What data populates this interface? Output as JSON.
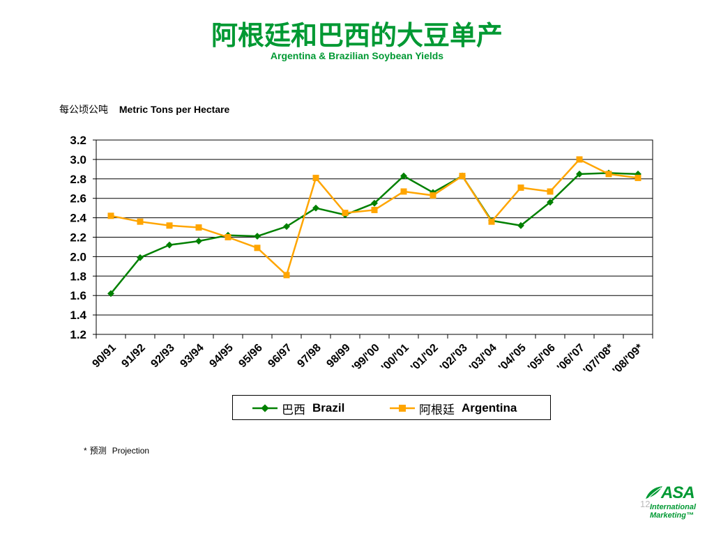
{
  "header": {
    "title_cn": "阿根廷和巴西的大豆单产",
    "title_en": "Argentina & Brazilian Soybean Yields"
  },
  "unit_label": {
    "cn": "每公顷公吨",
    "en": "Metric Tons per Hectare"
  },
  "chart_data": {
    "type": "line",
    "categories": [
      "90/91",
      "91/92",
      "92/93",
      "93/94",
      "94/95",
      "95/96",
      "96/97",
      "97/98",
      "98/99",
      "'99/'00",
      "'00/'01",
      "'01/'02",
      "'02/'03",
      "'03/'04",
      "'04/'05",
      "'05/'06",
      "'06/'07",
      "'07/'08*",
      "'08/'09*"
    ],
    "series": [
      {
        "name": "巴西 Brazil",
        "name_cn": "巴西",
        "name_en": "Brazil",
        "color": "#008000",
        "marker": "diamond",
        "values": [
          1.62,
          1.99,
          2.12,
          2.16,
          2.22,
          2.21,
          2.31,
          2.5,
          2.43,
          2.55,
          2.83,
          2.66,
          2.83,
          2.37,
          2.32,
          2.56,
          2.85,
          2.86,
          2.85
        ]
      },
      {
        "name": "阿根廷 Argentina",
        "name_cn": "阿根廷",
        "name_en": "Argentina",
        "color": "#ffa500",
        "marker": "square",
        "values": [
          2.42,
          2.36,
          2.32,
          2.3,
          2.2,
          2.09,
          1.81,
          2.81,
          2.45,
          2.48,
          2.67,
          2.63,
          2.83,
          2.36,
          2.71,
          2.67,
          3.0,
          2.85,
          2.81
        ]
      }
    ],
    "ylim": [
      1.2,
      3.2
    ],
    "yticks": [
      "1.2",
      "1.4",
      "1.6",
      "1.8",
      "2.0",
      "2.2",
      "2.4",
      "2.6",
      "2.8",
      "3.0",
      "3.2"
    ],
    "grid": true,
    "legend_position": "bottom"
  },
  "footnote": {
    "star": "*",
    "cn": "预测",
    "en": "Projection"
  },
  "logo": {
    "text": "ASA",
    "line1": "International",
    "line2": "Marketing™"
  },
  "page_number": "12"
}
